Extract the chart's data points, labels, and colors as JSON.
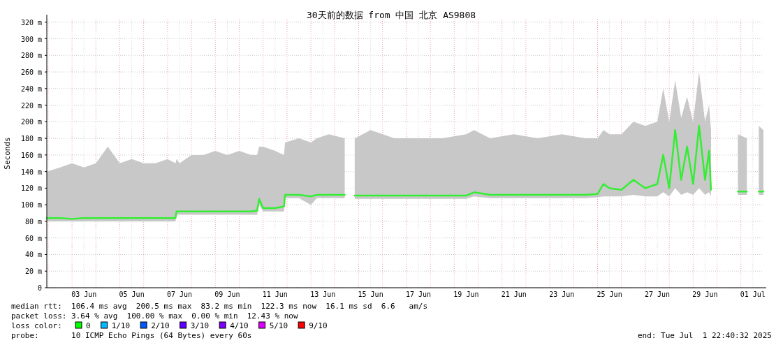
{
  "chart_data": {
    "type": "line",
    "title": "30天前的数据 from 中国 北京 AS9808",
    "ylabel": "Seconds",
    "x": [
      "2025-06-01T22:40",
      "2025-06-02T12:00",
      "2025-06-03T00:00",
      "2025-06-03T12:00",
      "2025-06-04T00:00",
      "2025-06-04T12:00",
      "2025-06-05T00:00",
      "2025-06-05T12:00",
      "2025-06-06T00:00",
      "2025-06-06T12:00",
      "2025-06-07T00:00",
      "2025-06-07T08:00",
      "2025-06-07T09:00",
      "2025-06-07T12:00",
      "2025-06-08T00:00",
      "2025-06-08T12:00",
      "2025-06-09T00:00",
      "2025-06-09T12:00",
      "2025-06-10T00:00",
      "2025-06-10T12:00",
      "2025-06-10T18:00",
      "2025-06-10T20:00",
      "2025-06-11T00:00",
      "2025-06-11T12:00",
      "2025-06-11T21:00",
      "2025-06-11T22:00",
      "2025-06-12T12:00",
      "2025-06-13T00:00",
      "2025-06-13T06:00",
      "2025-06-13T18:00",
      "2025-06-14T10:00",
      "2025-06-14T15:00",
      "2025-06-14T20:00",
      "2025-06-15T12:00",
      "2025-06-16T12:00",
      "2025-06-17T12:00",
      "2025-06-18T12:00",
      "2025-06-19T12:00",
      "2025-06-19T20:00",
      "2025-06-20T12:00",
      "2025-06-21T12:00",
      "2025-06-22T12:00",
      "2025-06-23T12:00",
      "2025-06-24T12:00",
      "2025-06-25T00:00",
      "2025-06-25T06:00",
      "2025-06-25T12:00",
      "2025-06-26T00:00",
      "2025-06-26T12:00",
      "2025-06-27T00:00",
      "2025-06-27T12:00",
      "2025-06-27T18:00",
      "2025-06-28T00:00",
      "2025-06-28T06:00",
      "2025-06-28T12:00",
      "2025-06-28T18:00",
      "2025-06-29T00:00",
      "2025-06-29T06:00",
      "2025-06-29T12:00",
      "2025-06-29T16:00",
      "2025-06-29T18:00",
      "2025-06-30T06:00",
      "2025-06-30T21:00",
      "2025-07-01T06:00",
      "2025-07-01T12:00",
      "2025-07-01T18:00",
      "2025-07-01T22:40"
    ],
    "series": [
      {
        "color": "#33ee33",
        "values": [
          84,
          84,
          83,
          84,
          84,
          84,
          84,
          84,
          84,
          84,
          84,
          84,
          92,
          92,
          92,
          92,
          92,
          92,
          92,
          92,
          93,
          107,
          96,
          96,
          98,
          112,
          112,
          110,
          112,
          112,
          112,
          null,
          111,
          111,
          111,
          111,
          111,
          111,
          115,
          112,
          112,
          112,
          112,
          112,
          113,
          125,
          120,
          118,
          130,
          120,
          125,
          160,
          120,
          190,
          130,
          170,
          125,
          195,
          130,
          165,
          118,
          null,
          116,
          116,
          null,
          116,
          116
        ],
        "lower": [
          80,
          80,
          80,
          80,
          80,
          80,
          80,
          80,
          80,
          80,
          80,
          80,
          88,
          88,
          88,
          88,
          88,
          88,
          88,
          88,
          88,
          100,
          92,
          92,
          92,
          108,
          108,
          100,
          108,
          108,
          108,
          null,
          107,
          107,
          107,
          107,
          107,
          107,
          110,
          108,
          108,
          108,
          108,
          108,
          109,
          110,
          110,
          110,
          112,
          110,
          110,
          115,
          110,
          120,
          112,
          115,
          112,
          120,
          112,
          115,
          110,
          null,
          112,
          112,
          null,
          112,
          112
        ],
        "upper": [
          140,
          145,
          150,
          145,
          150,
          170,
          150,
          155,
          150,
          150,
          155,
          150,
          155,
          150,
          160,
          160,
          165,
          160,
          165,
          160,
          160,
          170,
          170,
          165,
          160,
          175,
          180,
          175,
          180,
          185,
          180,
          null,
          180,
          190,
          180,
          180,
          180,
          185,
          190,
          180,
          185,
          180,
          185,
          180,
          180,
          190,
          185,
          185,
          200,
          195,
          200,
          240,
          200,
          250,
          205,
          230,
          200,
          260,
          200,
          220,
          190,
          null,
          185,
          180,
          null,
          195,
          190
        ]
      }
    ],
    "xlim": [
      "2025-06-01T22:40",
      "2025-07-01T22:40"
    ],
    "xticks": [
      {
        "value": "2025-06-03T12:00",
        "label": "03 Jun"
      },
      {
        "value": "2025-06-05T12:00",
        "label": "05 Jun"
      },
      {
        "value": "2025-06-07T12:00",
        "label": "07 Jun"
      },
      {
        "value": "2025-06-09T12:00",
        "label": "09 Jun"
      },
      {
        "value": "2025-06-11T12:00",
        "label": "11 Jun"
      },
      {
        "value": "2025-06-13T12:00",
        "label": "13 Jun"
      },
      {
        "value": "2025-06-15T12:00",
        "label": "15 Jun"
      },
      {
        "value": "2025-06-17T12:00",
        "label": "17 Jun"
      },
      {
        "value": "2025-06-19T12:00",
        "label": "19 Jun"
      },
      {
        "value": "2025-06-21T12:00",
        "label": "21 Jun"
      },
      {
        "value": "2025-06-23T12:00",
        "label": "23 Jun"
      },
      {
        "value": "2025-06-25T12:00",
        "label": "25 Jun"
      },
      {
        "value": "2025-06-27T12:00",
        "label": "27 Jun"
      },
      {
        "value": "2025-06-29T12:00",
        "label": "29 Jun"
      },
      {
        "value": "2025-07-01T12:00",
        "label": "01 Jul"
      }
    ],
    "ylim": [
      0,
      324
    ],
    "yticks": [
      0,
      {
        "value": 20,
        "label": "20 m"
      },
      {
        "value": 40,
        "label": "40 m"
      },
      {
        "value": 60,
        "label": "60 m"
      },
      {
        "value": 80,
        "label": "80 m"
      },
      {
        "value": 100,
        "label": "100 m"
      },
      {
        "value": 120,
        "label": "120 m"
      },
      {
        "value": 140,
        "label": "140 m"
      },
      {
        "value": 160,
        "label": "160 m"
      },
      {
        "value": 180,
        "label": "180 m"
      },
      {
        "value": 200,
        "label": "200 m"
      },
      {
        "value": 220,
        "label": "220 m"
      },
      {
        "value": 240,
        "label": "240 m"
      },
      {
        "value": 260,
        "label": "260 m"
      },
      {
        "value": 280,
        "label": "280 m"
      },
      {
        "value": 300,
        "label": "300 m"
      },
      {
        "value": 320,
        "label": "320 m"
      }
    ],
    "grid": true,
    "ref_lines": [
      {
        "axis": "x",
        "value": "2025-06-02T00:00",
        "color": "#f4a0a0",
        "line_style": "dotted"
      },
      {
        "axis": "x",
        "value": "2025-06-03T00:00",
        "color": "#f4a0a0",
        "line_style": "dotted"
      },
      {
        "axis": "x",
        "value": "2025-06-04T00:00",
        "color": "#f4a0a0",
        "line_style": "dotted"
      },
      {
        "axis": "x",
        "value": "2025-06-05T00:00",
        "color": "#f4a0a0",
        "line_style": "dotted"
      },
      {
        "axis": "x",
        "value": "2025-06-06T00:00",
        "color": "#f4a0a0",
        "line_style": "dotted"
      },
      {
        "axis": "x",
        "value": "2025-06-07T00:00",
        "color": "#f4a0a0",
        "line_style": "dotted"
      },
      {
        "axis": "x",
        "value": "2025-06-08T00:00",
        "color": "#f4a0a0",
        "line_style": "dotted"
      },
      {
        "axis": "x",
        "value": "2025-06-09T00:00",
        "color": "#f4a0a0",
        "line_style": "dotted"
      },
      {
        "axis": "x",
        "value": "2025-06-10T00:00",
        "color": "#f4a0a0",
        "line_style": "dotted"
      },
      {
        "axis": "x",
        "value": "2025-06-11T00:00",
        "color": "#f4a0a0",
        "line_style": "dotted"
      },
      {
        "axis": "x",
        "value": "2025-06-12T00:00",
        "color": "#f4a0a0",
        "line_style": "dotted"
      },
      {
        "axis": "x",
        "value": "2025-06-13T00:00",
        "color": "#f4a0a0",
        "line_style": "dotted"
      },
      {
        "axis": "x",
        "value": "2025-06-14T00:00",
        "color": "#f4a0a0",
        "line_style": "dotted"
      },
      {
        "axis": "x",
        "value": "2025-06-15T00:00",
        "color": "#f4a0a0",
        "line_style": "dotted"
      },
      {
        "axis": "x",
        "value": "2025-06-16T00:00",
        "color": "#f4a0a0",
        "line_style": "dotted"
      },
      {
        "axis": "x",
        "value": "2025-06-17T00:00",
        "color": "#f4a0a0",
        "line_style": "dotted"
      },
      {
        "axis": "x",
        "value": "2025-06-18T00:00",
        "color": "#f4a0a0",
        "line_style": "dotted"
      },
      {
        "axis": "x",
        "value": "2025-06-19T00:00",
        "color": "#f4a0a0",
        "line_style": "dotted"
      },
      {
        "axis": "x",
        "value": "2025-06-20T00:00",
        "color": "#f4a0a0",
        "line_style": "dotted"
      },
      {
        "axis": "x",
        "value": "2025-06-21T00:00",
        "color": "#f4a0a0",
        "line_style": "dotted"
      },
      {
        "axis": "x",
        "value": "2025-06-22T00:00",
        "color": "#f4a0a0",
        "line_style": "dotted"
      },
      {
        "axis": "x",
        "value": "2025-06-23T00:00",
        "color": "#f4a0a0",
        "line_style": "dotted"
      },
      {
        "axis": "x",
        "value": "2025-06-24T00:00",
        "color": "#f4a0a0",
        "line_style": "dotted"
      },
      {
        "axis": "x",
        "value": "2025-06-25T00:00",
        "color": "#f4a0a0",
        "line_style": "dotted"
      },
      {
        "axis": "x",
        "value": "2025-06-26T00:00",
        "color": "#f4a0a0",
        "line_style": "dotted"
      },
      {
        "axis": "x",
        "value": "2025-06-27T00:00",
        "color": "#f4a0a0",
        "line_style": "dotted"
      },
      {
        "axis": "x",
        "value": "2025-06-28T00:00",
        "color": "#f4a0a0",
        "line_style": "dotted"
      },
      {
        "axis": "x",
        "value": "2025-06-29T00:00",
        "color": "#f4a0a0",
        "line_style": "dotted"
      },
      {
        "axis": "x",
        "value": "2025-06-30T00:00",
        "color": "#f4a0a0",
        "line_style": "dotted"
      },
      {
        "axis": "x",
        "value": "2025-07-01T00:00",
        "color": "#f4a0a0",
        "line_style": "dotted"
      }
    ],
    "annotations": [
      "median rtt:  106.4 ms avg  200.5 ms max  83.2 ms min  122.3 ms now  16.1 ms sd  6.6   am/s",
      "packet loss: 3.64 % avg  100.00 % max  0.00 % min  12.43 % now",
      "loss color:",
      "0",
      "1/10",
      "2/10",
      "3/10",
      "4/10",
      "5/10",
      "9/10",
      "probe:       10 ICMP Echo Pings (64 Bytes) every 60s",
      "end: Tue Jul  1 22:40:32 2025"
    ]
  }
}
